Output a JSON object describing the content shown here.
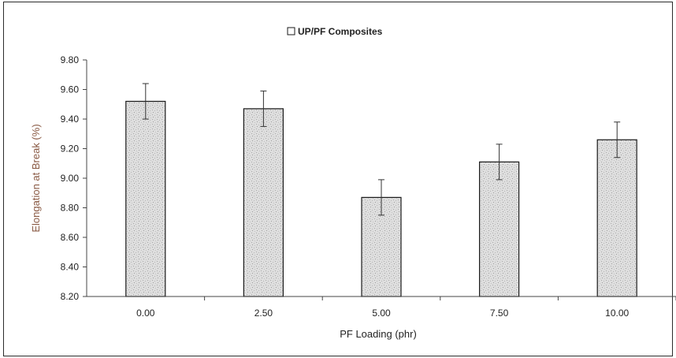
{
  "chart_data": {
    "type": "bar",
    "xlabel": "PF Loading (phr)",
    "ylabel": "Elongation at Break (%)",
    "categories": [
      "0.00",
      "2.50",
      "5.00",
      "7.50",
      "10.00"
    ],
    "series": [
      {
        "name": "UP/PF Composites",
        "values": [
          9.52,
          9.47,
          8.87,
          9.11,
          9.26
        ],
        "error": [
          0.12,
          0.12,
          0.12,
          0.12,
          0.12
        ]
      }
    ],
    "ylim": [
      8.2,
      9.8
    ],
    "yticks": [
      "8.20",
      "8.40",
      "8.60",
      "8.80",
      "9.00",
      "9.20",
      "9.40",
      "9.60",
      "9.80"
    ],
    "grid": false,
    "legend_position": "top-center",
    "colors": {
      "bar_fill": "#d9d9d9",
      "bar_stroke": "#1a1a1a",
      "axis": "#444444",
      "ylabel_color": "#8a5a44"
    }
  }
}
